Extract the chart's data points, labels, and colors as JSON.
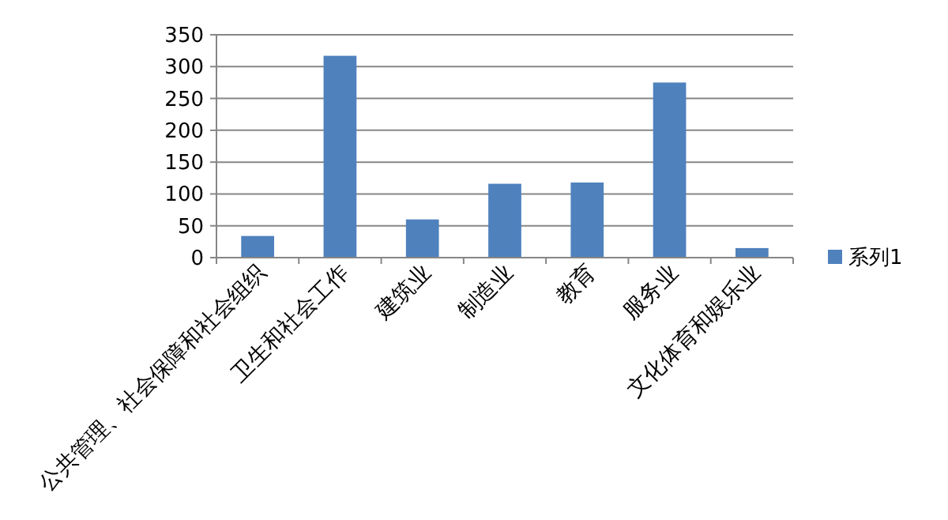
{
  "chart_data": {
    "type": "bar",
    "categories": [
      "公共管理、社会保障和社会组织",
      "卫生和社会工作",
      "建筑业",
      "制造业",
      "教育",
      "服务业",
      "文化体育和娱乐业"
    ],
    "series": [
      {
        "name": "系列1",
        "color": "#4f81bd",
        "values": [
          34,
          317,
          60,
          116,
          118,
          275,
          15
        ]
      }
    ],
    "ylim": [
      0,
      350
    ],
    "yticks": [
      0,
      50,
      100,
      150,
      200,
      250,
      300,
      350
    ],
    "grid": "y",
    "legend": "right"
  }
}
